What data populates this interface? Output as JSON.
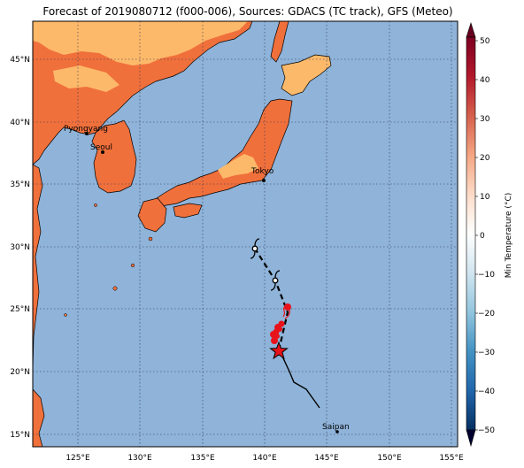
{
  "title": "Forecast of 2019080712 (f000-006), Sources: GDACS (TC track), GFS (Meteo)",
  "colors": {
    "ocean": "#8fb3d9",
    "land_warm": "#fdb96a",
    "land_hot": "#f0703c",
    "track": "#000000",
    "forecast_cluster": "#e8131a"
  },
  "map": {
    "lon_range": [
      121.5,
      155.5
    ],
    "lat_range": [
      14,
      48
    ],
    "lon_ticks": [
      "125°E",
      "130°E",
      "135°E",
      "140°E",
      "145°E",
      "150°E",
      "155°E"
    ],
    "lat_ticks": [
      "15°N",
      "20°N",
      "25°N",
      "30°N",
      "35°N",
      "40°N",
      "45°N"
    ],
    "grid": "dotted"
  },
  "cities": [
    {
      "name": "Pyongyang",
      "lon": 125.75,
      "lat": 39.0
    },
    {
      "name": "Seoul",
      "lon": 127.0,
      "lat": 37.5
    },
    {
      "name": "Tokyo",
      "lon": 139.7,
      "lat": 35.7
    },
    {
      "name": "Saipan",
      "lon": 145.7,
      "lat": 15.2
    }
  ],
  "track": {
    "past": [
      [
        144.5,
        17.2
      ],
      [
        143.2,
        18.3
      ],
      [
        142.2,
        19.0
      ],
      [
        141.8,
        20.0
      ],
      [
        141.3,
        21.0
      ],
      [
        141.0,
        21.7
      ]
    ],
    "forecast": [
      [
        141.0,
        21.7
      ],
      [
        141.8,
        24.8
      ],
      [
        140.8,
        27.3
      ],
      [
        138.9,
        29.8
      ]
    ],
    "current_position": [
      141.0,
      21.7
    ],
    "symbols": [
      [
        140.8,
        27.3
      ],
      [
        138.9,
        29.8
      ]
    ]
  },
  "colorbar": {
    "label": "Min Temperature (°C)",
    "ticks": [
      "50",
      "40",
      "30",
      "20",
      "10",
      "0",
      "−10",
      "−20",
      "−30",
      "−40",
      "−50"
    ],
    "colors": [
      "#7f0023",
      "#a80026",
      "#d7301f",
      "#ef6548",
      "#fc8d59",
      "#fdbb84",
      "#fee8c8",
      "#fff7ec",
      "#f7fbff",
      "#deebf7",
      "#c6dbef",
      "#9ecae1",
      "#6baed6",
      "#4292c6",
      "#2171b5",
      "#08519c",
      "#08306b",
      "#1a1a8c",
      "#000080"
    ]
  }
}
